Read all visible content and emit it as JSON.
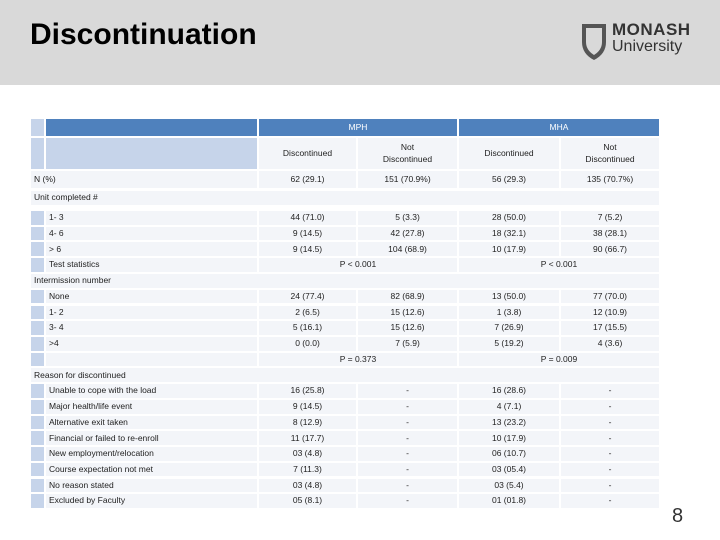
{
  "header": {
    "title": "Discontinuation",
    "logo": [
      "MONASH",
      "University"
    ]
  },
  "footer": {
    "page": "8"
  },
  "table": {
    "groups": [
      "MPH",
      "MHA"
    ],
    "columns": [
      "Discontinued",
      "Not Discontinued",
      "Discontinued",
      "Not Discontinued"
    ],
    "n_row": {
      "label": "N (%)",
      "cells": [
        "62 (29.1)",
        "151 (70.9%)",
        "56 (29.3)",
        "135 (70.7%)"
      ]
    },
    "sections": [
      {
        "title": "Unit completed #",
        "rows": [
          {
            "label": "1- 3",
            "cells": [
              "44 (71.0)",
              "5 (3.3)",
              "28 (50.0)",
              "7 (5.2)"
            ]
          },
          {
            "label": "4- 6",
            "cells": [
              "9 (14.5)",
              "42 (27.8)",
              "18 (32.1)",
              "38 (28.1)"
            ]
          },
          {
            "label": "> 6",
            "cells": [
              "9 (14.5)",
              "104 (68.9)",
              "10 (17.9)",
              "90 (66.7)"
            ]
          }
        ],
        "stats": {
          "label": "Test statistics",
          "cells": [
            "P < 0.001",
            "P < 0.001"
          ]
        }
      },
      {
        "title": "Intermission number",
        "rows": [
          {
            "label": "None",
            "cells": [
              "24 (77.4)",
              "82 (68.9)",
              "13 (50.0)",
              "77 (70.0)"
            ]
          },
          {
            "label": "1- 2",
            "cells": [
              "2 (6.5)",
              "15 (12.6)",
              "1 (3.8)",
              "12 (10.9)"
            ]
          },
          {
            "label": "3- 4",
            "cells": [
              "5 (16.1)",
              "15 (12.6)",
              "7 (26.9)",
              "17 (15.5)"
            ]
          },
          {
            "label": ">4",
            "cells": [
              "0 (0.0)",
              "7 (5.9)",
              "5 (19.2)",
              "4 (3.6)"
            ]
          }
        ],
        "stats": {
          "cells": [
            "P = 0.373",
            "P = 0.009"
          ]
        }
      },
      {
        "title": "Reason for discontinued",
        "rows": [
          {
            "label": "Unable to cope with the load",
            "cells": [
              "16 (25.8)",
              "-",
              "16 (28.6)",
              "-"
            ]
          },
          {
            "label": "Major health/life event",
            "cells": [
              "9 (14.5)",
              "-",
              "4 (7.1)",
              "-"
            ]
          },
          {
            "label": "Alternative exit taken",
            "cells": [
              "8 (12.9)",
              "-",
              "13 (23.2)",
              "-"
            ]
          },
          {
            "label": "Financial or failed to re-enroll",
            "cells": [
              "11 (17.7)",
              "-",
              "10 (17.9)",
              "-"
            ]
          },
          {
            "label": "New employment/relocation",
            "cells": [
              "03 (4.8)",
              "-",
              "06 (10.7)",
              "-"
            ]
          },
          {
            "label": "Course expectation not met",
            "cells": [
              "7 (11.3)",
              "-",
              "03 (05.4)",
              "-"
            ]
          },
          {
            "label": "No reason stated",
            "cells": [
              "03 (4.8)",
              "-",
              "03 (5.4)",
              "-"
            ]
          },
          {
            "label": "Excluded by Faculty",
            "cells": [
              "05 (8.1)",
              "-",
              "01 (01.8)",
              "-"
            ]
          }
        ]
      }
    ]
  }
}
